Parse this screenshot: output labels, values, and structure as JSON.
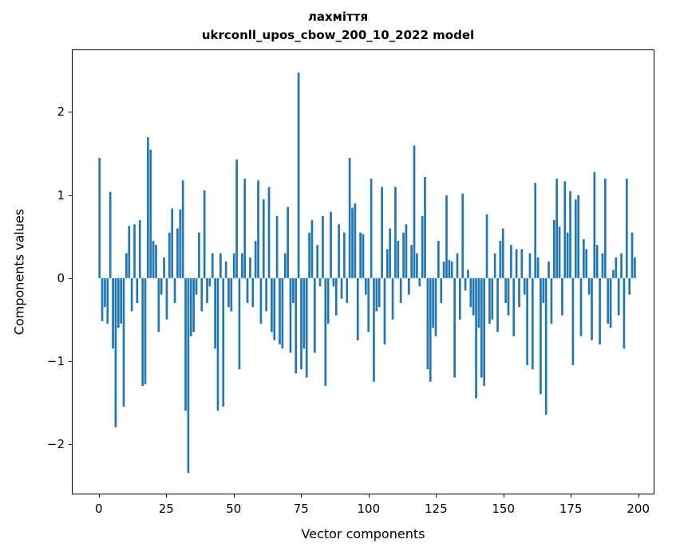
{
  "chart_data": {
    "type": "bar",
    "title": "лахміття",
    "subtitle": "ukrconll_upos_cbow_200_10_2022 model",
    "xlabel": "Vector components",
    "ylabel": "Components values",
    "bar_color": "#1f77b4",
    "grid": false,
    "legend": "none",
    "xlim": [
      -10,
      206
    ],
    "ylim": [
      -2.6,
      2.75
    ],
    "xticks": [
      {
        "v": 0,
        "label": "0"
      },
      {
        "v": 25,
        "label": "25"
      },
      {
        "v": 50,
        "label": "50"
      },
      {
        "v": 75,
        "label": "75"
      },
      {
        "v": 100,
        "label": "100"
      },
      {
        "v": 125,
        "label": "125"
      },
      {
        "v": 150,
        "label": "150"
      },
      {
        "v": 175,
        "label": "175"
      },
      {
        "v": 200,
        "label": "200"
      }
    ],
    "yticks": [
      {
        "v": -2,
        "label": "−2"
      },
      {
        "v": -1,
        "label": "−1"
      },
      {
        "v": 0,
        "label": "0"
      },
      {
        "v": 1,
        "label": "1"
      },
      {
        "v": 2,
        "label": "2"
      }
    ],
    "x_start": 0,
    "values": [
      1.45,
      -0.52,
      -0.35,
      -0.55,
      1.04,
      -0.85,
      -1.8,
      -0.6,
      -0.55,
      -1.55,
      0.3,
      0.63,
      -0.4,
      0.65,
      -0.3,
      0.7,
      -1.3,
      -1.28,
      1.7,
      1.55,
      0.45,
      0.4,
      -0.65,
      -0.2,
      0.25,
      -0.5,
      0.55,
      0.84,
      -0.3,
      0.6,
      0.83,
      1.18,
      -1.6,
      -2.35,
      -0.7,
      -0.65,
      -0.2,
      0.55,
      -0.4,
      1.06,
      -0.3,
      -0.1,
      0.3,
      -0.85,
      -1.6,
      0.3,
      -1.55,
      0.2,
      -0.35,
      -0.4,
      0.3,
      1.43,
      -1.1,
      0.3,
      1.2,
      -0.3,
      0.25,
      -0.35,
      0.45,
      1.18,
      -0.55,
      0.95,
      -0.4,
      1.1,
      -0.65,
      -0.75,
      0.75,
      -0.8,
      -0.85,
      0.3,
      0.86,
      -0.9,
      -0.3,
      -1.15,
      2.48,
      -1.1,
      -0.85,
      -1.2,
      0.55,
      0.7,
      -0.9,
      0.4,
      -0.1,
      0.75,
      -1.3,
      -0.55,
      0.8,
      -0.1,
      -0.45,
      0.65,
      -0.25,
      0.55,
      -0.3,
      1.45,
      0.85,
      0.9,
      -0.75,
      0.55,
      0.53,
      -0.2,
      -0.65,
      1.2,
      -1.25,
      -0.4,
      -0.35,
      1.1,
      -0.8,
      0.35,
      0.6,
      -0.5,
      1.1,
      0.45,
      -0.3,
      0.55,
      0.65,
      -0.2,
      0.4,
      1.6,
      0.3,
      -0.1,
      0.75,
      1.22,
      -1.1,
      -1.25,
      -0.6,
      -0.7,
      0.45,
      -0.3,
      0.2,
      1.0,
      0.22,
      0.2,
      -1.2,
      0.3,
      -0.5,
      1.02,
      -0.15,
      0.1,
      -0.35,
      -0.45,
      -1.45,
      -0.6,
      -1.2,
      -1.3,
      0.77,
      -0.55,
      -0.5,
      0.3,
      -0.65,
      0.45,
      0.6,
      -0.3,
      -0.45,
      0.4,
      -0.7,
      0.35,
      -0.35,
      0.35,
      -0.2,
      -1.05,
      0.3,
      -1.1,
      1.15,
      0.25,
      -1.4,
      -0.3,
      -1.65,
      0.2,
      -0.55,
      0.7,
      1.2,
      0.62,
      -0.45,
      1.17,
      0.55,
      1.05,
      -1.05,
      0.95,
      1.0,
      -0.7,
      0.47,
      0.35,
      -0.2,
      -0.75,
      1.28,
      0.4,
      -0.8,
      0.3,
      1.2,
      -0.55,
      -0.6,
      0.1,
      0.25,
      -0.45,
      0.3,
      -0.85,
      1.2,
      -0.2,
      0.55,
      0.25
    ]
  }
}
